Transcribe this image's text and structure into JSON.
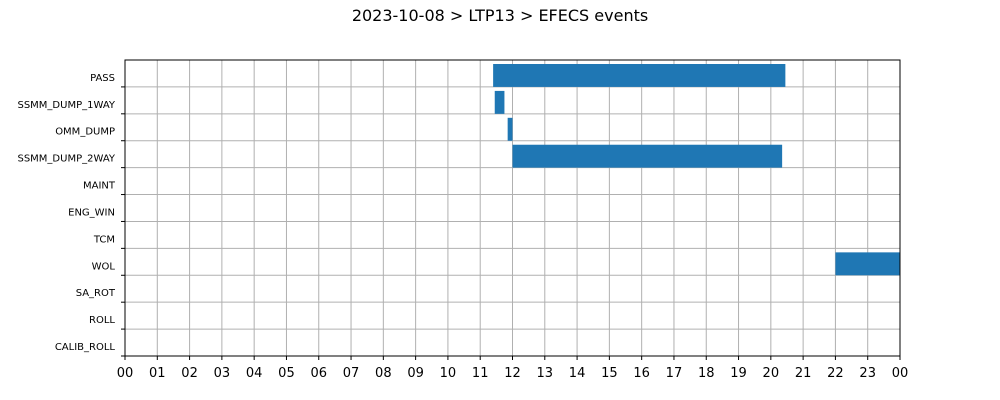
{
  "chart_data": {
    "type": "bar",
    "orientation": "horizontal-timeline",
    "title": "2023-10-08 > LTP13 > EFECS events",
    "xlabel": "",
    "ylabel": "",
    "xlim": [
      0,
      24
    ],
    "x_ticks": [
      "00",
      "01",
      "02",
      "03",
      "04",
      "05",
      "06",
      "07",
      "08",
      "09",
      "10",
      "11",
      "12",
      "13",
      "14",
      "15",
      "16",
      "17",
      "18",
      "19",
      "20",
      "21",
      "22",
      "23",
      "00"
    ],
    "categories": [
      "PASS",
      "SSMM_DUMP_1WAY",
      "OMM_DUMP",
      "SSMM_DUMP_2WAY",
      "MAINT",
      "ENG_WIN",
      "TCM",
      "WOL",
      "SA_ROT",
      "ROLL",
      "CALIB_ROLL"
    ],
    "grid": true,
    "bar_color": "#1f77b4",
    "events": [
      {
        "category": "PASS",
        "start": 11.4,
        "end": 20.45
      },
      {
        "category": "SSMM_DUMP_1WAY",
        "start": 11.45,
        "end": 11.75
      },
      {
        "category": "OMM_DUMP",
        "start": 11.85,
        "end": 12.0
      },
      {
        "category": "SSMM_DUMP_2WAY",
        "start": 12.0,
        "end": 20.35
      },
      {
        "category": "WOL",
        "start": 22.0,
        "end": 24.0
      }
    ]
  }
}
